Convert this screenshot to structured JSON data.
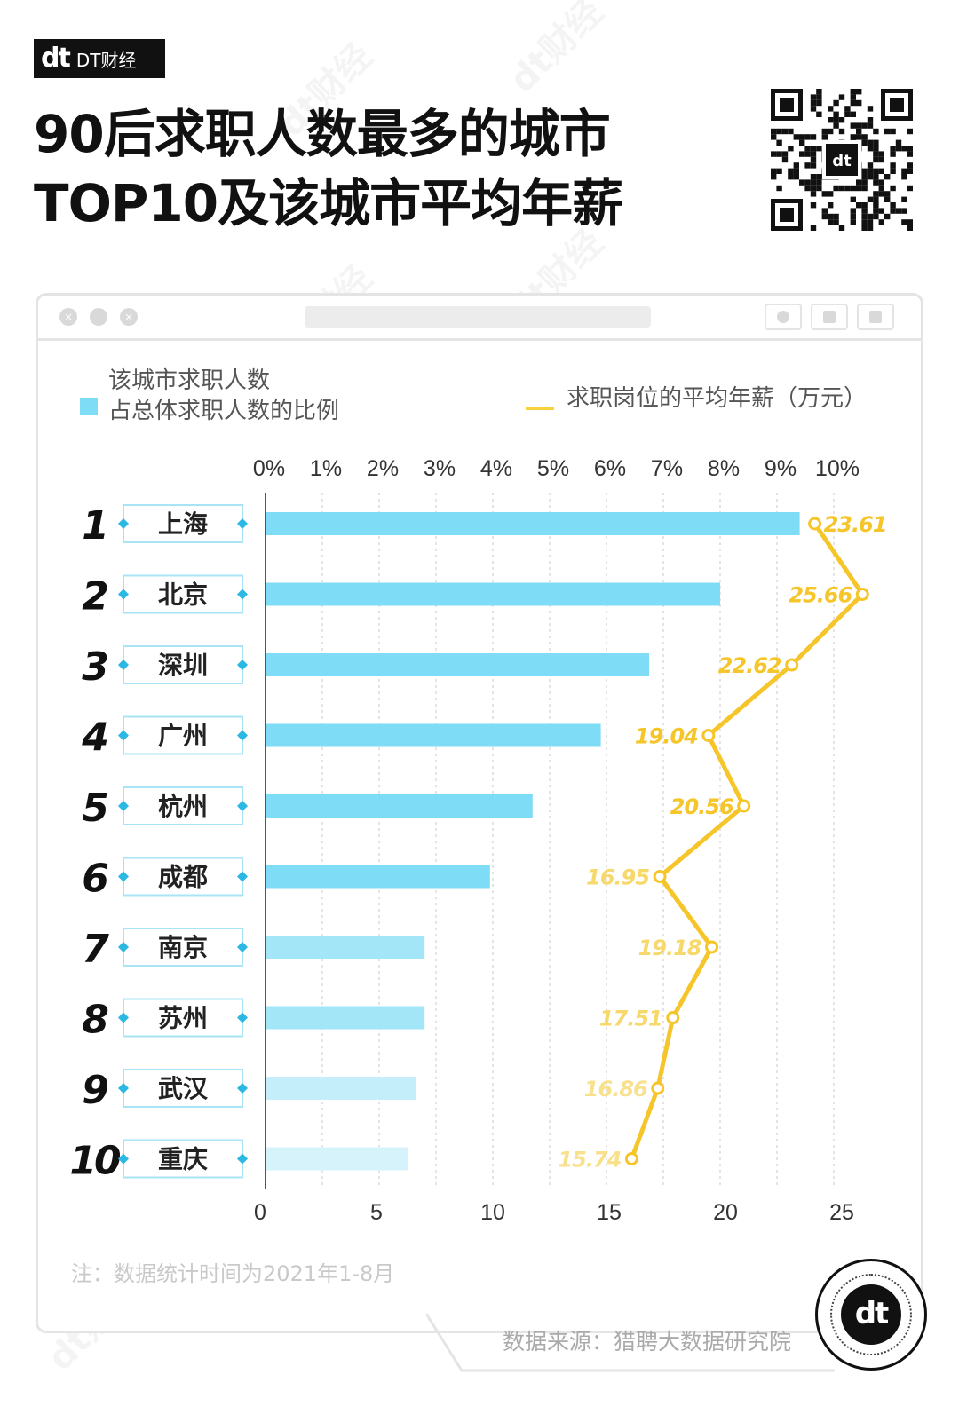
{
  "brand": {
    "logo": "dt",
    "name": "DT财经"
  },
  "title": {
    "line1": "90后求职人数最多的城市",
    "line2": "TOP10及该城市平均年薪"
  },
  "window": {
    "close_glyph": "×"
  },
  "legend": {
    "share_line1": "该城市求职人数",
    "share_line2": "占总体求职人数的比例",
    "salary": "求职岗位的平均年薪（万元）"
  },
  "note": "注：数据统计时间为2021年1-8月",
  "source": "数据来源：猎聘大数据研究院",
  "watermark": "dt财经",
  "colors": {
    "bar": "#7fdcf6",
    "line": "#f5c52a",
    "text": "#111111"
  },
  "chart_data": {
    "type": "bar",
    "title": "90后求职人数最多的城市TOP10及该城市平均年薪",
    "categories": [
      "上海",
      "北京",
      "深圳",
      "广州",
      "杭州",
      "成都",
      "南京",
      "苏州",
      "武汉",
      "重庆"
    ],
    "ranks": [
      "1",
      "2",
      "3",
      "4",
      "5",
      "6",
      "7",
      "8",
      "9",
      "10"
    ],
    "series": [
      {
        "name": "该城市求职人数占总体求职人数的比例",
        "type": "bar",
        "unit": "%",
        "values": [
          9.4,
          8.0,
          6.75,
          5.9,
          4.7,
          3.95,
          2.8,
          2.8,
          2.65,
          2.5
        ]
      },
      {
        "name": "求职岗位的平均年薪（万元）",
        "type": "line",
        "unit": "万元",
        "values": [
          23.61,
          25.66,
          22.62,
          19.04,
          20.56,
          16.95,
          19.18,
          17.51,
          16.86,
          15.74
        ],
        "labels": [
          "23.61",
          "25.66",
          "22.62",
          "19.04",
          "20.56",
          "16.95",
          "19.18",
          "17.51",
          "16.86",
          "15.74"
        ]
      }
    ],
    "top_axis": {
      "range": [
        0,
        10
      ],
      "ticks": [
        "0%",
        "1%",
        "2%",
        "3%",
        "4%",
        "5%",
        "6%",
        "7%",
        "8%",
        "9%",
        "10%"
      ]
    },
    "bottom_axis": {
      "range": [
        0,
        25
      ],
      "ticks": [
        "0",
        "5",
        "10",
        "15",
        "20",
        "25"
      ]
    },
    "grid": true
  }
}
